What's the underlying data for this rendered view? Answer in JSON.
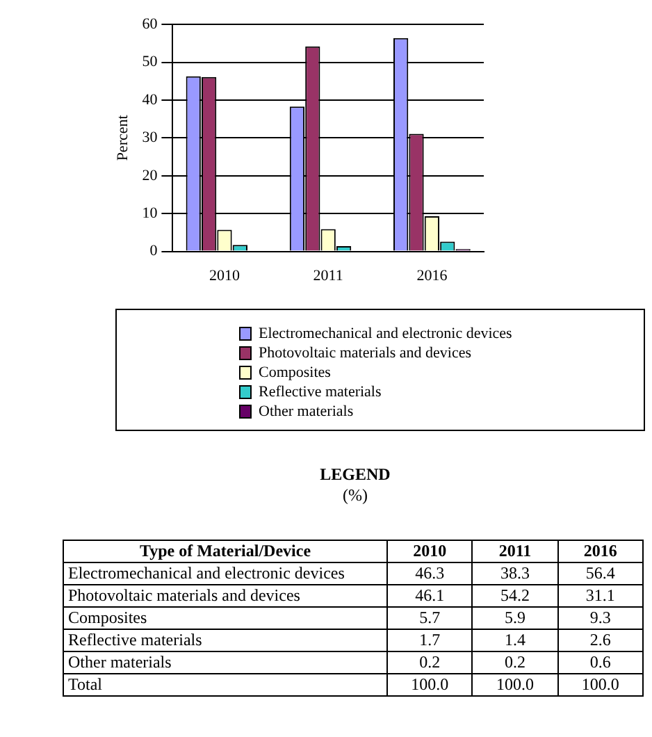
{
  "chart_data": [
    {
      "type": "bar",
      "ylabel": "Percent",
      "categories": [
        "2010",
        "2011",
        "2016"
      ],
      "series": [
        {
          "name": "Electromechanical and electronic devices",
          "color": "#9999ff",
          "values": [
            46.3,
            38.3,
            56.4
          ]
        },
        {
          "name": "Photovoltaic materials and devices",
          "color": "#993366",
          "values": [
            46.1,
            54.2,
            31.1
          ]
        },
        {
          "name": "Composites",
          "color": "#ffffcc",
          "values": [
            5.7,
            5.9,
            9.3
          ]
        },
        {
          "name": "Reflective materials",
          "color": "#33cccc",
          "values": [
            1.7,
            1.4,
            2.6
          ]
        },
        {
          "name": "Other materials",
          "color": "#660066",
          "values": [
            0.2,
            0.2,
            0.6
          ]
        }
      ],
      "ylim": [
        0,
        60
      ],
      "yticks": [
        0,
        10,
        20,
        30,
        40,
        50,
        60
      ],
      "grid": "y",
      "legend": "bottom"
    },
    {
      "type": "other",
      "title": "LEGEND",
      "subtitle": "(%)",
      "annotations": [
        "Type of Material/Device"
      ],
      "categories": [
        "Electromechanical and electronic devices",
        "Photovoltaic materials and devices",
        "Composites",
        "Reflective materials",
        "Other materials",
        "Total"
      ],
      "series": [
        {
          "name": "2010",
          "values": [
            46.3,
            46.1,
            5.7,
            1.7,
            0.2,
            100.0
          ],
          "value_labels": [
            "46.3",
            "46.1",
            "5.7",
            "1.7",
            "0.2",
            "100.0"
          ]
        },
        {
          "name": "2011",
          "values": [
            38.3,
            54.2,
            5.9,
            1.4,
            0.2,
            100.0
          ],
          "value_labels": [
            "38.3",
            "54.2",
            "5.9",
            "1.4",
            "0.2",
            "100.0"
          ]
        },
        {
          "name": "2016",
          "values": [
            56.4,
            31.1,
            9.3,
            2.6,
            0.6,
            100.0
          ],
          "value_labels": [
            "56.4",
            "31.1",
            "9.3",
            "2.6",
            "0.6",
            "100.0"
          ]
        }
      ],
      "data_labels": true
    }
  ]
}
